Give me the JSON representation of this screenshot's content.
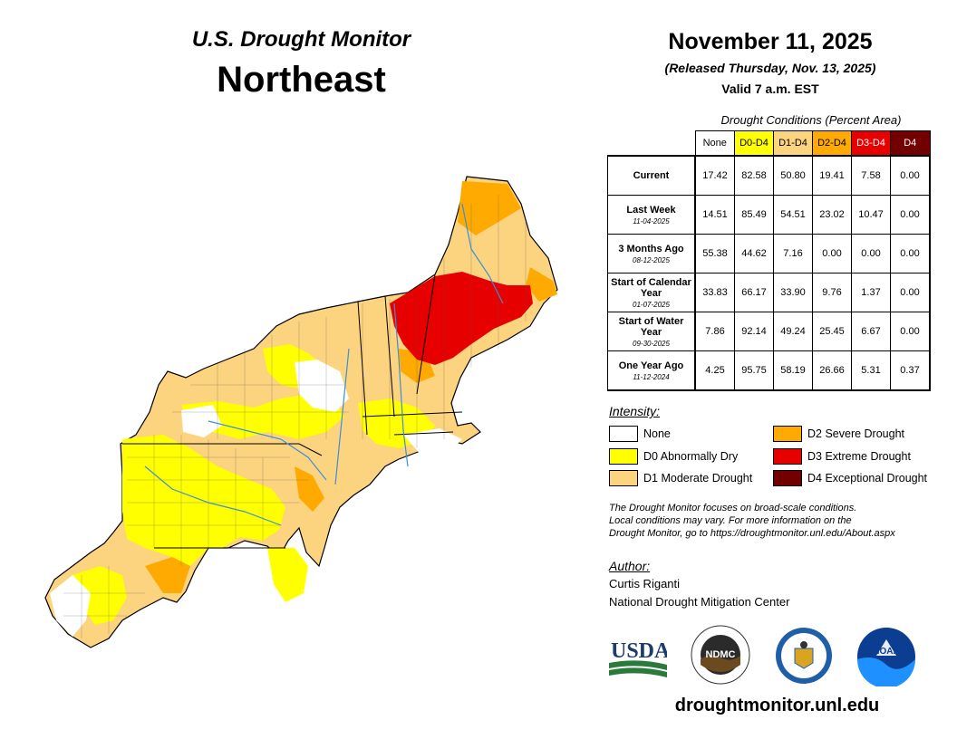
{
  "header": {
    "subtitle": "U.S. Drought Monitor",
    "region": "Northeast",
    "date": "November 11, 2025",
    "released": "(Released Thursday, Nov. 13, 2025)",
    "valid": "Valid 7 a.m. EST"
  },
  "table": {
    "title": "Drought Conditions (Percent Area)",
    "columns": [
      {
        "label": "None",
        "bg": "#ffffff",
        "fg": "#000000"
      },
      {
        "label": "D0-D4",
        "bg": "#ffff00",
        "fg": "#000000"
      },
      {
        "label": "D1-D4",
        "bg": "#fcd37f",
        "fg": "#000000"
      },
      {
        "label": "D2-D4",
        "bg": "#ffaa00",
        "fg": "#000000"
      },
      {
        "label": "D3-D4",
        "bg": "#e60000",
        "fg": "#ffffff"
      },
      {
        "label": "D4",
        "bg": "#730000",
        "fg": "#ffffff"
      }
    ],
    "rows": [
      {
        "label": "Current",
        "date": "",
        "values": [
          "17.42",
          "82.58",
          "50.80",
          "19.41",
          "7.58",
          "0.00"
        ]
      },
      {
        "label": "Last Week",
        "date": "11-04-2025",
        "values": [
          "14.51",
          "85.49",
          "54.51",
          "23.02",
          "10.47",
          "0.00"
        ]
      },
      {
        "label": "3 Months Ago",
        "date": "08-12-2025",
        "values": [
          "55.38",
          "44.62",
          "7.16",
          "0.00",
          "0.00",
          "0.00"
        ]
      },
      {
        "label": "Start of Calendar Year",
        "date": "01-07-2025",
        "values": [
          "33.83",
          "66.17",
          "33.90",
          "9.76",
          "1.37",
          "0.00"
        ]
      },
      {
        "label": "Start of Water Year",
        "date": "09-30-2025",
        "values": [
          "7.86",
          "92.14",
          "49.24",
          "25.45",
          "6.67",
          "0.00"
        ]
      },
      {
        "label": "One Year Ago",
        "date": "11-12-2024",
        "values": [
          "4.25",
          "95.75",
          "58.19",
          "26.66",
          "5.31",
          "0.37"
        ]
      }
    ]
  },
  "legend": {
    "title": "Intensity:",
    "items": [
      {
        "label": "None",
        "color": "#ffffff"
      },
      {
        "label": "D0 Abnormally Dry",
        "color": "#ffff00"
      },
      {
        "label": "D1 Moderate Drought",
        "color": "#fcd37f"
      },
      {
        "label": "D2 Severe Drought",
        "color": "#ffaa00"
      },
      {
        "label": "D3 Extreme Drought",
        "color": "#e60000"
      },
      {
        "label": "D4 Exceptional Drought",
        "color": "#730000"
      }
    ]
  },
  "note": {
    "line1": "The Drought Monitor focuses on broad-scale conditions.",
    "line2": "Local conditions may vary. For more information on the",
    "line3": "Drought Monitor, go to https://droughtmonitor.unl.edu/About.aspx"
  },
  "author": {
    "title": "Author:",
    "name": "Curtis Riganti",
    "org": "National Drought Mitigation Center"
  },
  "logos": {
    "usda": "USDA",
    "ndmc": "NDMC",
    "commerce": "commerce-seal",
    "noaa": "NOAA"
  },
  "footer": {
    "url": "droughtmonitor.unl.edu"
  }
}
